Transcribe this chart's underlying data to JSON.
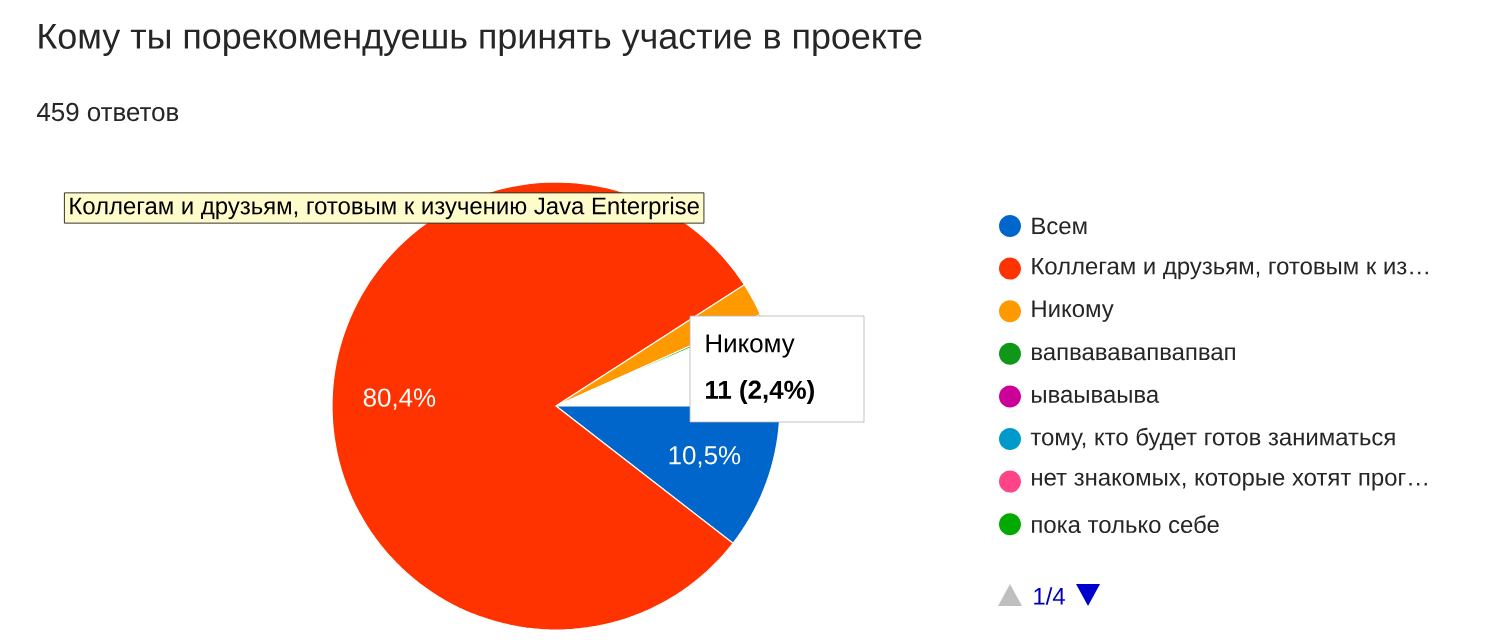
{
  "chart_data": {
    "type": "pie",
    "title": "Кому ты порекомендуешь принять участие в проекте",
    "subtitle": "459 ответов",
    "categories": [
      "Всем",
      "Коллегам и друзьям, готовым к из…",
      "Никому",
      "вапвававапвапвап",
      "ываываыва",
      "тому, кто будет готов заниматься",
      "нет знакомых, которые хотят прог…",
      "пока только себе"
    ],
    "values": [
      10.5,
      80.4,
      2.4,
      null,
      null,
      null,
      null,
      0.2
    ],
    "colors": [
      "#0066cc",
      "#ff3300",
      "#ff9900",
      "#109618",
      "#cc0099",
      "#0099cc",
      "#ff4488",
      "#00aa00"
    ],
    "value_labels": [
      "10,5%",
      "80,4%",
      null,
      null,
      null,
      null,
      null,
      null
    ],
    "legend": "right",
    "annotations": [
      "Коллегам и друзьям, готовым к изучению Java Enterprise",
      "Никому",
      "11 (2,4%)",
      "1/4"
    ]
  }
}
